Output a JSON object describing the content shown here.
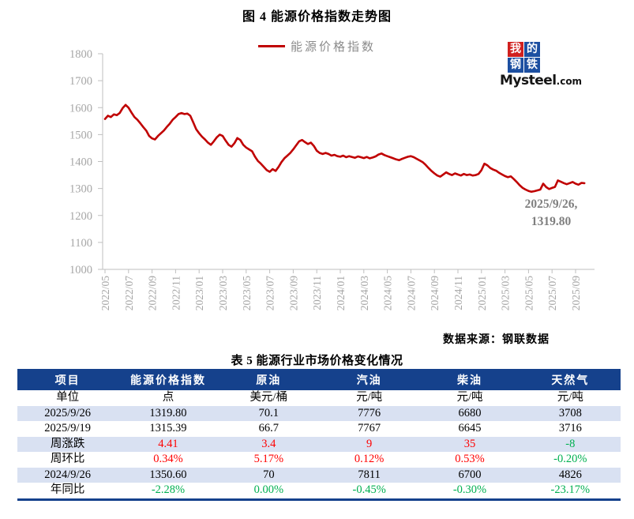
{
  "figure_title": "图 4  能源价格指数走势图",
  "legend": {
    "label": "能源价格指数",
    "line_color": "#C00000"
  },
  "logo": {
    "chars": [
      "我",
      "的",
      "钢",
      "铁"
    ],
    "brand": "Mysteel",
    "domain": ".com",
    "red": "#D0201E",
    "blue": "#1C4FA1"
  },
  "annotation": {
    "line1": "2025/9/26,",
    "line2": "1319.80"
  },
  "source": "数据来源：钢联数据",
  "axis": {
    "line_color": "#BFBFBF",
    "label_color": "#A6A6A6"
  },
  "chart_data": {
    "type": "line",
    "title": "图 4  能源价格指数走势图",
    "grid": false,
    "legend_position": "top",
    "ylim": [
      1000,
      1800
    ],
    "y_ticks": [
      1800,
      1700,
      1600,
      1500,
      1400,
      1300,
      1200,
      1100,
      1000
    ],
    "x_tick_labels": [
      "2022/05",
      "2022/07",
      "2022/09",
      "2022/11",
      "2023/01",
      "2023/03",
      "2023/05",
      "2023/07",
      "2023/09",
      "2023/11",
      "2024/01",
      "2024/03",
      "2024/05",
      "2024/07",
      "2024/09",
      "2024/11",
      "2025/01",
      "2025/03",
      "2025/05",
      "2025/07",
      "2025/09"
    ],
    "x_tick_month_interval": 2,
    "x_step_months": 0.25,
    "last_point": {
      "date": "2025/9/26",
      "value": 1319.8
    },
    "series": [
      {
        "name": "能源价格指数",
        "color": "#C00000",
        "values": [
          1558,
          1570,
          1565,
          1575,
          1572,
          1580,
          1598,
          1610,
          1600,
          1582,
          1565,
          1555,
          1542,
          1528,
          1515,
          1495,
          1486,
          1482,
          1495,
          1505,
          1515,
          1528,
          1540,
          1555,
          1565,
          1576,
          1580,
          1576,
          1578,
          1570,
          1545,
          1520,
          1505,
          1492,
          1482,
          1470,
          1462,
          1475,
          1490,
          1500,
          1495,
          1478,
          1462,
          1455,
          1468,
          1487,
          1480,
          1462,
          1452,
          1445,
          1438,
          1418,
          1402,
          1392,
          1380,
          1368,
          1362,
          1372,
          1365,
          1380,
          1398,
          1412,
          1422,
          1432,
          1445,
          1460,
          1475,
          1480,
          1472,
          1465,
          1470,
          1458,
          1440,
          1432,
          1428,
          1432,
          1428,
          1422,
          1425,
          1420,
          1418,
          1422,
          1416,
          1420,
          1417,
          1414,
          1419,
          1416,
          1413,
          1417,
          1412,
          1415,
          1419,
          1426,
          1430,
          1424,
          1420,
          1416,
          1412,
          1408,
          1405,
          1410,
          1414,
          1418,
          1420,
          1416,
          1410,
          1404,
          1398,
          1388,
          1376,
          1365,
          1356,
          1348,
          1344,
          1352,
          1360,
          1354,
          1350,
          1356,
          1352,
          1348,
          1354,
          1350,
          1352,
          1348,
          1350,
          1354,
          1368,
          1392,
          1386,
          1376,
          1370,
          1366,
          1358,
          1352,
          1346,
          1342,
          1345,
          1335,
          1324,
          1312,
          1302,
          1296,
          1291,
          1288,
          1290,
          1293,
          1296,
          1318,
          1305,
          1298,
          1302,
          1306,
          1330,
          1325,
          1320,
          1316,
          1320,
          1324,
          1318,
          1314,
          1321,
          1319.8
        ]
      }
    ]
  },
  "table": {
    "title": "表 5 能源行业市场价格变化情况",
    "headers": [
      "项目",
      "能源价格指数",
      "原油",
      "汽油",
      "柴油",
      "天然气"
    ],
    "rows": [
      {
        "cells": [
          "单位",
          "点",
          "美元/桶",
          "元/吨",
          "元/吨",
          "元/吨"
        ]
      },
      {
        "cells": [
          "2025/9/26",
          "1319.80",
          "70.1",
          "7776",
          "6680",
          "3708"
        ]
      },
      {
        "cells": [
          "2025/9/19",
          "1315.39",
          "66.7",
          "7767",
          "6645",
          "3716"
        ]
      },
      {
        "cells": [
          "周涨跌",
          {
            "t": "4.41",
            "c": "red"
          },
          {
            "t": "3.4",
            "c": "red"
          },
          {
            "t": "9",
            "c": "red"
          },
          {
            "t": "35",
            "c": "red"
          },
          {
            "t": "-8",
            "c": "green"
          }
        ]
      },
      {
        "cells": [
          "周环比",
          {
            "t": "0.34%",
            "c": "red"
          },
          {
            "t": "5.17%",
            "c": "red"
          },
          {
            "t": "0.12%",
            "c": "red"
          },
          {
            "t": "0.53%",
            "c": "red"
          },
          {
            "t": "-0.20%",
            "c": "green"
          }
        ]
      },
      {
        "cells": [
          "2024/9/26",
          "1350.60",
          "70",
          "7811",
          "6700",
          "4826"
        ]
      },
      {
        "cells": [
          "年同比",
          {
            "t": "-2.28%",
            "c": "green"
          },
          {
            "t": "0.00%",
            "c": "green"
          },
          {
            "t": "-0.45%",
            "c": "green"
          },
          {
            "t": "-0.30%",
            "c": "green"
          },
          {
            "t": "-23.17%",
            "c": "green"
          }
        ]
      }
    ],
    "colors": {
      "header_bg": "#15418C",
      "header_text": "#FFFFFF",
      "shade_bg": "#D9E1F2",
      "red": "#FF0000",
      "green": "#00B050",
      "border": "#15418C"
    }
  }
}
